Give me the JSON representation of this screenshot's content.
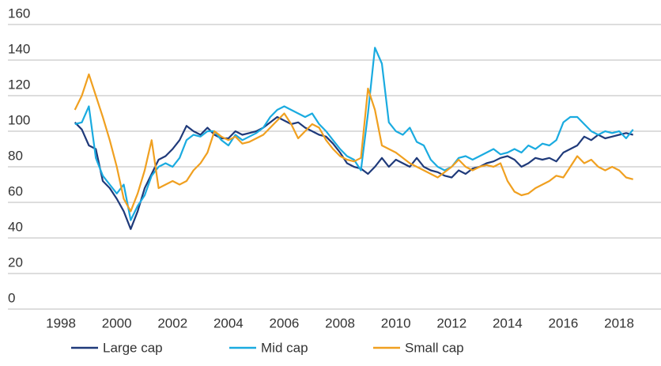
{
  "chart_data": {
    "type": "line",
    "x": [
      1998.5,
      1998.75,
      1999,
      1999.25,
      1999.5,
      1999.75,
      2000,
      2000.25,
      2000.5,
      2000.75,
      2001,
      2001.25,
      2001.5,
      2001.75,
      2002,
      2002.25,
      2002.5,
      2002.75,
      2003,
      2003.25,
      2003.5,
      2003.75,
      2004,
      2004.25,
      2004.5,
      2004.75,
      2005,
      2005.25,
      2005.5,
      2005.75,
      2006,
      2006.25,
      2006.5,
      2006.75,
      2007,
      2007.25,
      2007.5,
      2007.75,
      2008,
      2008.25,
      2008.5,
      2008.75,
      2009,
      2009.25,
      2009.5,
      2009.75,
      2010,
      2010.25,
      2010.5,
      2010.75,
      2011,
      2011.25,
      2011.5,
      2011.75,
      2012,
      2012.25,
      2012.5,
      2012.75,
      2013,
      2013.25,
      2013.5,
      2013.75,
      2014,
      2014.25,
      2014.5,
      2014.75,
      2015,
      2015.25,
      2015.5,
      2015.75,
      2016,
      2016.25,
      2016.5,
      2016.75,
      2017,
      2017.25,
      2017.5,
      2017.75,
      2018,
      2018.25,
      2018.5
    ],
    "series": [
      {
        "name": "Large cap",
        "color": "#1f3a7a",
        "values": [
          105,
          101,
          92,
          90,
          72,
          68,
          62,
          55,
          45,
          55,
          68,
          76,
          84,
          86,
          90,
          95,
          103,
          100,
          98,
          102,
          98,
          96,
          96,
          100,
          98,
          99,
          100,
          102,
          105,
          108,
          106,
          104,
          105,
          102,
          100,
          98,
          97,
          93,
          88,
          82,
          80,
          79,
          76,
          80,
          85,
          80,
          84,
          82,
          80,
          85,
          80,
          78,
          77,
          75,
          74,
          78,
          76,
          79,
          80,
          82,
          83,
          85,
          86,
          84,
          80,
          82,
          85,
          84,
          85,
          83,
          88,
          90,
          92,
          97,
          95,
          98,
          96,
          97,
          98,
          99,
          98
        ]
      },
      {
        "name": "Mid cap",
        "color": "#1aabe0",
        "values": [
          104,
          105,
          114,
          85,
          75,
          70,
          65,
          70,
          50,
          58,
          64,
          75,
          80,
          82,
          80,
          85,
          95,
          98,
          97,
          100,
          100,
          95,
          92,
          98,
          95,
          97,
          99,
          102,
          108,
          112,
          114,
          112,
          110,
          108,
          110,
          104,
          100,
          95,
          90,
          86,
          84,
          78,
          110,
          147,
          138,
          105,
          100,
          98,
          102,
          94,
          92,
          84,
          80,
          78,
          80,
          85,
          86,
          84,
          86,
          88,
          90,
          87,
          88,
          90,
          88,
          92,
          90,
          93,
          92,
          95,
          105,
          108,
          108,
          104,
          100,
          98,
          100,
          99,
          100,
          96,
          101
        ]
      },
      {
        "name": "Small cap",
        "color": "#f0a020",
        "values": [
          112,
          120,
          132,
          120,
          108,
          95,
          80,
          62,
          55,
          65,
          78,
          95,
          68,
          70,
          72,
          70,
          72,
          78,
          82,
          88,
          100,
          97,
          95,
          97,
          93,
          94,
          96,
          98,
          102,
          106,
          110,
          104,
          96,
          100,
          104,
          102,
          95,
          90,
          86,
          84,
          83,
          85,
          124,
          112,
          92,
          90,
          88,
          85,
          82,
          80,
          78,
          76,
          74,
          77,
          80,
          84,
          80,
          78,
          80,
          81,
          80,
          82,
          72,
          66,
          64,
          65,
          68,
          70,
          72,
          75,
          74,
          80,
          86,
          82,
          84,
          80,
          78,
          80,
          78,
          74,
          73
        ]
      }
    ],
    "xlim": [
      1996.1,
      2019.5
    ],
    "xticks": [
      1998,
      2000,
      2002,
      2004,
      2006,
      2008,
      2010,
      2012,
      2014,
      2016,
      2018
    ],
    "ylim": [
      0,
      160
    ],
    "yticks": [
      0,
      20,
      40,
      60,
      80,
      100,
      120,
      140,
      160
    ],
    "grid": true
  }
}
